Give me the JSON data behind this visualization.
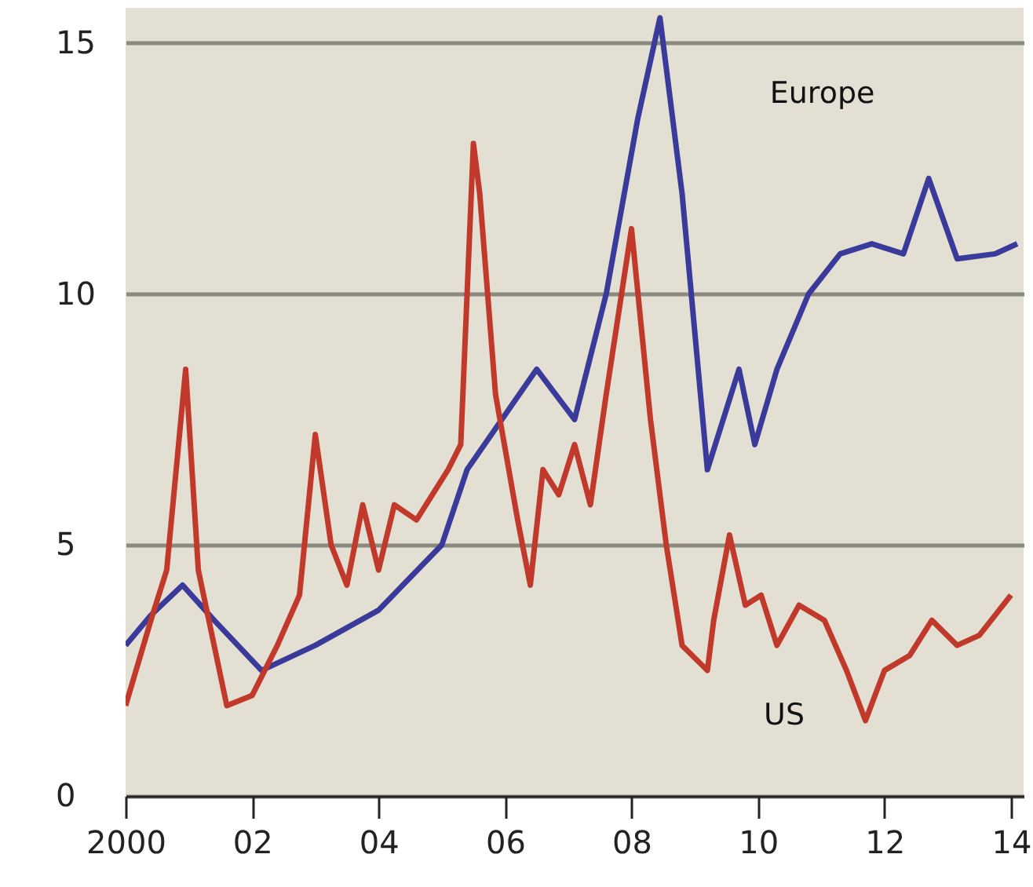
{
  "chart_data": {
    "type": "line",
    "xlim": [
      2000,
      2014.2
    ],
    "ylim": [
      0,
      15.7
    ],
    "xticks": [
      {
        "value": 2000,
        "label": "2000"
      },
      {
        "value": 2002,
        "label": "02"
      },
      {
        "value": 2004,
        "label": "04"
      },
      {
        "value": 2006,
        "label": "06"
      },
      {
        "value": 2008,
        "label": "08"
      },
      {
        "value": 2010,
        "label": "10"
      },
      {
        "value": 2012,
        "label": "12"
      },
      {
        "value": 2014,
        "label": "14"
      }
    ],
    "yticks": [
      0,
      5,
      10,
      15
    ],
    "grid": "y",
    "line_style": "solid",
    "marker": "none",
    "series": [
      {
        "name": "Europe",
        "color": "#3a3a9a",
        "x": [
          2000.0,
          2000.4,
          2000.9,
          2001.4,
          2002.15,
          2003.0,
          2004.0,
          2005.0,
          2005.4,
          2006.5,
          2007.1,
          2007.6,
          2008.1,
          2008.45,
          2008.8,
          2009.2,
          2009.7,
          2009.95,
          2010.3,
          2010.8,
          2011.3,
          2011.8,
          2012.3,
          2012.7,
          2013.15,
          2013.75,
          2014.1
        ],
        "values": [
          3.0,
          3.6,
          4.2,
          3.5,
          2.5,
          3.0,
          3.7,
          5.0,
          6.5,
          8.5,
          7.5,
          10.0,
          13.5,
          15.5,
          12.0,
          6.5,
          8.5,
          7.0,
          8.5,
          10.0,
          10.8,
          11.0,
          10.8,
          12.3,
          10.7,
          10.8,
          11.0
        ]
      },
      {
        "name": "US",
        "color": "#c0392b",
        "x": [
          2000.0,
          2000.4,
          2000.65,
          2000.95,
          2001.15,
          2001.6,
          2002.0,
          2002.4,
          2002.75,
          2003.0,
          2003.25,
          2003.5,
          2003.75,
          2004.0,
          2004.25,
          2004.6,
          2005.1,
          2005.3,
          2005.5,
          2005.6,
          2005.85,
          2006.2,
          2006.4,
          2006.6,
          2006.85,
          2007.1,
          2007.35,
          2007.6,
          2008.0,
          2008.3,
          2008.55,
          2008.8,
          2009.2,
          2009.3,
          2009.55,
          2009.8,
          2010.05,
          2010.3,
          2010.65,
          2011.05,
          2011.4,
          2011.7,
          2012.0,
          2012.4,
          2012.75,
          2013.15,
          2013.5,
          2014.0
        ],
        "values": [
          1.8,
          3.5,
          4.5,
          8.5,
          4.5,
          1.8,
          2.0,
          3.0,
          4.0,
          7.2,
          5.0,
          4.2,
          5.8,
          4.5,
          5.8,
          5.5,
          6.5,
          7.0,
          13.0,
          12.0,
          8.0,
          5.5,
          4.2,
          6.5,
          6.0,
          7.0,
          5.8,
          8.0,
          11.3,
          7.5,
          5.0,
          3.0,
          2.5,
          3.5,
          5.2,
          3.8,
          4.0,
          3.0,
          3.8,
          3.5,
          2.5,
          1.5,
          2.5,
          2.8,
          3.5,
          3.0,
          3.2,
          4.0
        ]
      }
    ]
  }
}
